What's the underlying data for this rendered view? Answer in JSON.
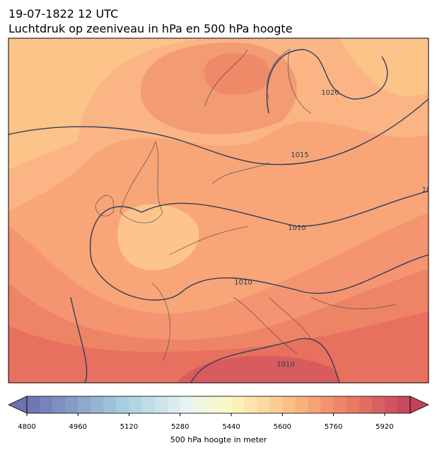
{
  "chart_data": {
    "type": "map",
    "title": "19-07-1822 12 UTC",
    "subtitle": "Luchtdruk op zeeniveau in hPa en 500 hPa hoogte",
    "contour_labels": [
      1020,
      1015,
      1010,
      1010,
      1010,
      10
    ],
    "colorbar": {
      "label": "500 hPa hoogte in meter",
      "lim": [
        4800,
        6000
      ],
      "ticks": [
        4800,
        4960,
        5120,
        5280,
        5440,
        5600,
        5760,
        5920
      ],
      "levels": [
        4800,
        4840,
        4880,
        4920,
        4960,
        5000,
        5040,
        5080,
        5120,
        5160,
        5200,
        5240,
        5280,
        5320,
        5360,
        5400,
        5440,
        5480,
        5520,
        5560,
        5600,
        5640,
        5680,
        5720,
        5760,
        5800,
        5840,
        5880,
        5920,
        5960,
        6000
      ],
      "extend": "both"
    }
  }
}
